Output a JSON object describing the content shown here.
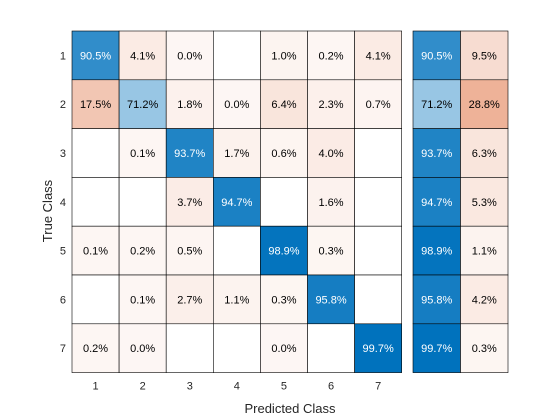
{
  "chart_data": {
    "type": "heatmap",
    "title": "",
    "xlabel": "Predicted Class",
    "ylabel": "True Class",
    "categories": [
      "1",
      "2",
      "3",
      "4",
      "5",
      "6",
      "7"
    ],
    "matrix_percent": [
      [
        90.5,
        4.1,
        0.0,
        null,
        1.0,
        0.2,
        4.1
      ],
      [
        17.5,
        71.2,
        1.8,
        0.0,
        6.4,
        2.3,
        0.7
      ],
      [
        null,
        0.1,
        93.7,
        1.7,
        0.6,
        4.0,
        null
      ],
      [
        null,
        null,
        3.7,
        94.7,
        null,
        1.6,
        null
      ],
      [
        0.1,
        0.2,
        0.5,
        null,
        98.9,
        0.3,
        null
      ],
      [
        null,
        0.1,
        2.7,
        1.1,
        0.3,
        95.8,
        null
      ],
      [
        0.2,
        0.0,
        null,
        null,
        0.0,
        null,
        99.7
      ]
    ],
    "row_summary_percent": [
      [
        90.5,
        9.5
      ],
      [
        71.2,
        28.8
      ],
      [
        93.7,
        6.3
      ],
      [
        94.7,
        5.3
      ],
      [
        98.9,
        1.1
      ],
      [
        95.8,
        4.2
      ],
      [
        99.7,
        0.3
      ]
    ],
    "value_suffix": "%",
    "colors": {
      "correct": "#0072BD",
      "incorrect": "#D95319",
      "grid": "#000000",
      "text_dark": "#000000",
      "text_light": "#ffffff"
    }
  }
}
